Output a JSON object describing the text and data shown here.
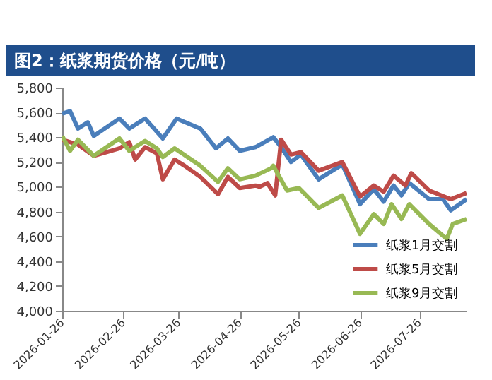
{
  "chart_data": {
    "type": "line",
    "title": "图2：纸浆期货价格（元/吨）",
    "xlim": [
      "2026-01-26",
      "2026-08-19"
    ],
    "xticks": [
      "2026-01-26",
      "2026-02-26",
      "2026-03-26",
      "2026-04-26",
      "2026-05-26",
      "2026-06-26",
      "2026-07-26"
    ],
    "ylim": [
      4000,
      5800
    ],
    "yticks": [
      {
        "value": 4000,
        "label": "4,000"
      },
      {
        "value": 4200,
        "label": "4,200"
      },
      {
        "value": 4400,
        "label": "4,400"
      },
      {
        "value": 4600,
        "label": "4,600"
      },
      {
        "value": 4800,
        "label": "4,800"
      },
      {
        "value": 5000,
        "label": "5,000"
      },
      {
        "value": 5200,
        "label": "5,200"
      },
      {
        "value": 5400,
        "label": "5,400"
      },
      {
        "value": 5600,
        "label": "5,600"
      },
      {
        "value": 5800,
        "label": "5,800"
      }
    ],
    "grid": false,
    "legend": "bottom right",
    "marker": "none",
    "line_style": "solid",
    "series": [
      {
        "name": "纸浆1月交割",
        "color": "#4a7ebb",
        "x": [
          "2026-01-26",
          "2026-01-30",
          "2026-02-03",
          "2026-02-08",
          "2026-02-11",
          "2026-02-24",
          "2026-03-01",
          "2026-03-09",
          "2026-03-13",
          "2026-03-18",
          "2026-03-25",
          "2026-04-06",
          "2026-04-14",
          "2026-04-20",
          "2026-04-26",
          "2026-05-04",
          "2026-05-12",
          "2026-05-13",
          "2026-05-17",
          "2026-05-22",
          "2026-05-27",
          "2026-06-05",
          "2026-06-17",
          "2026-06-26",
          "2026-07-03",
          "2026-07-08",
          "2026-07-13",
          "2026-07-17",
          "2026-07-21",
          "2026-07-31",
          "2026-08-07",
          "2026-08-11",
          "2026-08-19"
        ],
        "values": [
          5590,
          5610,
          5470,
          5520,
          5410,
          5550,
          5470,
          5550,
          5480,
          5390,
          5550,
          5470,
          5310,
          5390,
          5290,
          5320,
          5390,
          5400,
          5320,
          5200,
          5260,
          5060,
          5180,
          4860,
          4980,
          4880,
          5010,
          4930,
          5030,
          4900,
          4900,
          4810,
          4900
        ]
      },
      {
        "name": "纸浆5月交割",
        "color": "#be4b48",
        "x": [
          "2026-01-26",
          "2026-02-03",
          "2026-02-11",
          "2026-02-24",
          "2026-03-01",
          "2026-03-04",
          "2026-03-09",
          "2026-03-15",
          "2026-03-18",
          "2026-03-24",
          "2026-03-29",
          "2026-04-06",
          "2026-04-15",
          "2026-04-20",
          "2026-04-26",
          "2026-05-04",
          "2026-05-06",
          "2026-05-10",
          "2026-05-14",
          "2026-05-17",
          "2026-05-22",
          "2026-05-27",
          "2026-06-05",
          "2026-06-17",
          "2026-06-26",
          "2026-07-03",
          "2026-07-08",
          "2026-07-13",
          "2026-07-19",
          "2026-07-22",
          "2026-07-31",
          "2026-08-11",
          "2026-08-19"
        ],
        "values": [
          5380,
          5340,
          5250,
          5310,
          5360,
          5220,
          5320,
          5270,
          5060,
          5220,
          5170,
          5080,
          4940,
          5080,
          4990,
          5010,
          5000,
          5030,
          4930,
          5380,
          5260,
          5280,
          5130,
          5200,
          4920,
          5010,
          4960,
          5090,
          5010,
          5110,
          4970,
          4900,
          4950
        ]
      },
      {
        "name": "纸浆9月交割",
        "color": "#98b954",
        "x": [
          "2026-01-26",
          "2026-01-30",
          "2026-02-03",
          "2026-02-11",
          "2026-02-24",
          "2026-03-01",
          "2026-03-09",
          "2026-03-15",
          "2026-03-18",
          "2026-03-24",
          "2026-04-06",
          "2026-04-15",
          "2026-04-20",
          "2026-04-26",
          "2026-05-04",
          "2026-05-12",
          "2026-05-13",
          "2026-05-20",
          "2026-05-26",
          "2026-06-05",
          "2026-06-17",
          "2026-06-26",
          "2026-07-03",
          "2026-07-08",
          "2026-07-12",
          "2026-07-17",
          "2026-07-21",
          "2026-07-31",
          "2026-08-09",
          "2026-08-12",
          "2026-08-19"
        ],
        "values": [
          5410,
          5290,
          5380,
          5250,
          5390,
          5290,
          5370,
          5310,
          5240,
          5310,
          5170,
          5040,
          5150,
          5060,
          5090,
          5150,
          5170,
          4970,
          4990,
          4830,
          4930,
          4620,
          4780,
          4700,
          4860,
          4740,
          4860,
          4700,
          4580,
          4700,
          4740
        ]
      }
    ]
  }
}
